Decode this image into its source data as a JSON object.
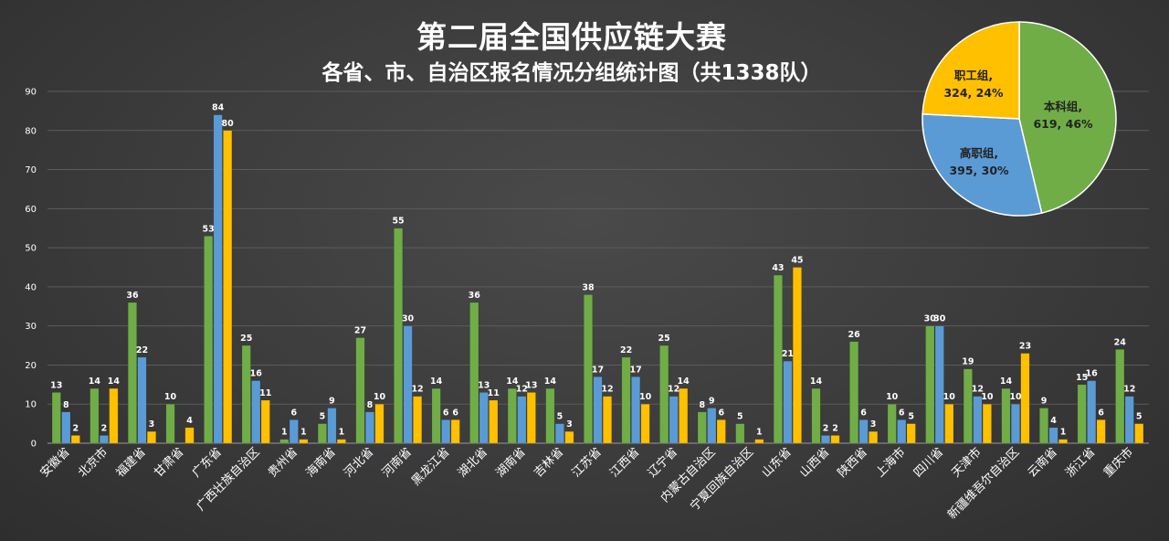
{
  "title": "第二届全国供应链大赛",
  "subtitle": "各省、市、自治区报名情况分组统计图（共1338队）",
  "colors": {
    "本科组": "#70ad47",
    "高职组": "#5b9bd5",
    "职工组": "#ffc000"
  },
  "chart_data": [
    {
      "type": "bar",
      "ylim": [
        0,
        90
      ],
      "yticks": [
        0,
        10,
        20,
        30,
        40,
        50,
        60,
        70,
        80,
        90
      ],
      "grid": true,
      "categories": [
        "安徽省",
        "北京市",
        "福建省",
        "甘肃省",
        "广东省",
        "广西壮族自治区",
        "贵州省",
        "海南省",
        "河北省",
        "河南省",
        "黑龙江省",
        "湖北省",
        "湖南省",
        "吉林省",
        "江苏省",
        "江西省",
        "辽宁省",
        "内蒙古自治区",
        "宁夏回族自治区",
        "山东省",
        "山西省",
        "陕西省",
        "上海市",
        "四川省",
        "天津市",
        "新疆维吾尔自治区",
        "云南省",
        "浙江省",
        "重庆市"
      ],
      "series": [
        {
          "name": "本科组",
          "values": [
            13,
            14,
            36,
            10,
            53,
            25,
            1,
            5,
            27,
            55,
            14,
            36,
            14,
            14,
            38,
            22,
            25,
            8,
            5,
            43,
            14,
            26,
            10,
            30,
            19,
            14,
            9,
            15,
            24
          ]
        },
        {
          "name": "高职组",
          "values": [
            8,
            2,
            22,
            null,
            84,
            16,
            6,
            9,
            8,
            30,
            6,
            13,
            12,
            5,
            17,
            17,
            12,
            9,
            null,
            21,
            2,
            6,
            6,
            30,
            12,
            10,
            4,
            16,
            12
          ]
        },
        {
          "name": "职工组",
          "values": [
            2,
            14,
            3,
            4,
            80,
            11,
            1,
            1,
            10,
            12,
            6,
            11,
            13,
            3,
            12,
            10,
            14,
            6,
            1,
            45,
            2,
            3,
            5,
            10,
            10,
            23,
            1,
            6,
            5
          ]
        }
      ]
    },
    {
      "type": "pie",
      "slices": [
        {
          "label": "本科组",
          "value": 619,
          "percent": "46%",
          "text": "本科组,",
          "text2": "619, 46%"
        },
        {
          "label": "高职组",
          "value": 395,
          "percent": "30%",
          "text": "高职组,",
          "text2": "395, 30%"
        },
        {
          "label": "职工组",
          "value": 324,
          "percent": "24%",
          "text": "职工组,",
          "text2": "324, 24%"
        }
      ]
    }
  ]
}
